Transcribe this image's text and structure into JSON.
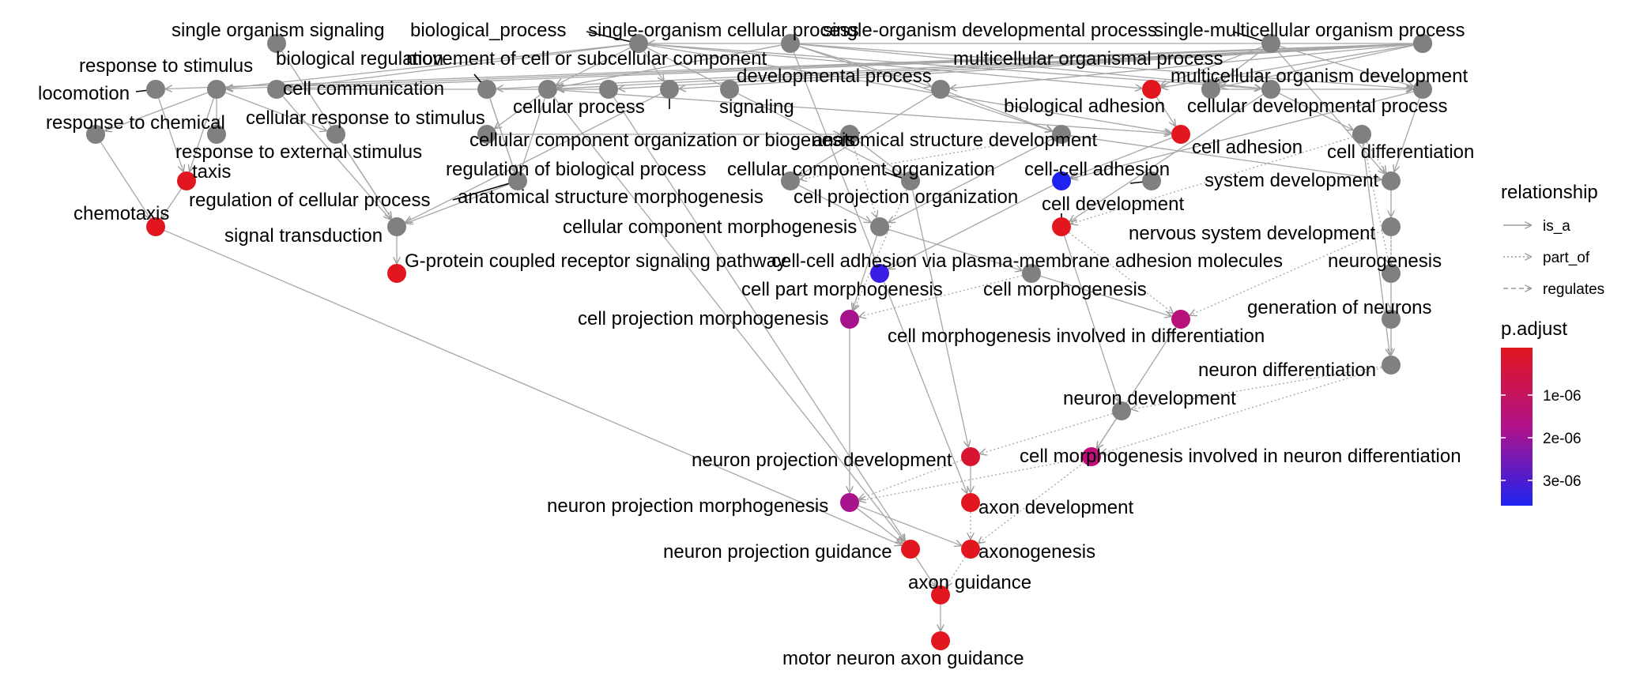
{
  "nodes": [
    {
      "id": "single_organism_signaling",
      "label": "single organism signaling",
      "color": "#808080"
    },
    {
      "id": "biological_process",
      "label": "biological_process",
      "color": "#808080"
    },
    {
      "id": "single_organism_cellular_process",
      "label": "single-organism cellular process",
      "color": "#808080"
    },
    {
      "id": "single_organism_developmental_process",
      "label": "single-organism developmental process",
      "color": "#808080"
    },
    {
      "id": "single_multicellular_organism_process",
      "label": "single-multicellular organism process",
      "color": "#808080"
    },
    {
      "id": "response_to_stimulus",
      "label": "response to stimulus",
      "color": "#808080"
    },
    {
      "id": "biological_regulation",
      "label": "biological regulation",
      "color": "#808080"
    },
    {
      "id": "movement_of_cell",
      "label": "movement of cell or subcellular component",
      "color": "#808080"
    },
    {
      "id": "multicellular_organismal_process",
      "label": "multicellular organismal process",
      "color": "#808080"
    },
    {
      "id": "locomotion",
      "label": "locomotion",
      "color": "#808080"
    },
    {
      "id": "cell_communication",
      "label": "cell communication",
      "color": "#808080"
    },
    {
      "id": "developmental_process",
      "label": "developmental process",
      "color": "#808080"
    },
    {
      "id": "multicellular_organism_development",
      "label": "multicellular organism development",
      "color": "#808080"
    },
    {
      "id": "cellular_process",
      "label": "cellular process",
      "color": "#808080"
    },
    {
      "id": "signaling",
      "label": "signaling",
      "color": "#808080"
    },
    {
      "id": "biological_adhesion",
      "label": "biological adhesion",
      "color": "#e1161f"
    },
    {
      "id": "cellular_developmental_process",
      "label": "cellular developmental process",
      "color": "#808080"
    },
    {
      "id": "response_to_chemical",
      "label": "response to chemical",
      "color": "#808080"
    },
    {
      "id": "cellular_response_to_stimulus",
      "label": "cellular response to stimulus",
      "color": "#808080"
    },
    {
      "id": "cellular_component_organization_or_biogenesis",
      "label": "cellular component organization or biogenesis",
      "color": "#808080"
    },
    {
      "id": "anatomical_structure_development",
      "label": "anatomical structure development",
      "color": "#808080"
    },
    {
      "id": "cell_adhesion",
      "label": "cell adhesion",
      "color": "#e1161f"
    },
    {
      "id": "response_to_external_stimulus",
      "label": "response to external stimulus",
      "color": "#808080"
    },
    {
      "id": "cell_differentiation",
      "label": "cell differentiation",
      "color": "#808080"
    },
    {
      "id": "taxis",
      "label": "taxis",
      "color": "#e1161f"
    },
    {
      "id": "regulation_of_biological_process",
      "label": "regulation of biological process",
      "color": "#808080"
    },
    {
      "id": "cellular_component_organization",
      "label": "cellular component organization",
      "color": "#808080"
    },
    {
      "id": "cell_cell_adhesion",
      "label": "cell-cell adhesion",
      "color": "#1e23f0"
    },
    {
      "id": "regulation_of_cellular_process",
      "label": "regulation of cellular process",
      "color": "#808080"
    },
    {
      "id": "anatomical_structure_morphogenesis",
      "label": "anatomical structure morphogenesis",
      "color": "#808080"
    },
    {
      "id": "cell_projection_organization",
      "label": "cell projection organization",
      "color": "#808080"
    },
    {
      "id": "system_development",
      "label": "system development",
      "color": "#808080"
    },
    {
      "id": "cell_development",
      "label": "cell development",
      "color": "#e1161f"
    },
    {
      "id": "chemotaxis",
      "label": "chemotaxis",
      "color": "#e1161f"
    },
    {
      "id": "signal_transduction",
      "label": "signal transduction",
      "color": "#808080"
    },
    {
      "id": "cellular_component_morphogenesis",
      "label": "cellular component morphogenesis",
      "color": "#808080"
    },
    {
      "id": "nervous_system_development",
      "label": "nervous system development",
      "color": "#808080"
    },
    {
      "id": "gpcr_signaling",
      "label": "G-protein coupled receptor signaling pathway",
      "color": "#e1161f"
    },
    {
      "id": "cell_cell_adhesion_via_pm",
      "label": "cell-cell adhesion via plasma-membrane adhesion molecules",
      "color": "#3a1ee6"
    },
    {
      "id": "neurogenesis",
      "label": "neurogenesis",
      "color": "#808080"
    },
    {
      "id": "cell_part_morphogenesis",
      "label": "cell part morphogenesis",
      "color": "#808080"
    },
    {
      "id": "cell_morphogenesis",
      "label": "cell morphogenesis",
      "color": "#808080"
    },
    {
      "id": "generation_of_neurons",
      "label": "generation of neurons",
      "color": "#808080"
    },
    {
      "id": "cell_projection_morphogenesis",
      "label": "cell projection morphogenesis",
      "color": "#a6128c"
    },
    {
      "id": "cell_morphogenesis_in_differentiation",
      "label": "cell morphogenesis involved in differentiation",
      "color": "#b8127a"
    },
    {
      "id": "neuron_differentiation",
      "label": "neuron differentiation",
      "color": "#808080"
    },
    {
      "id": "neuron_development",
      "label": "neuron development",
      "color": "#808080"
    },
    {
      "id": "neuron_projection_development",
      "label": "neuron projection development",
      "color": "#d81530"
    },
    {
      "id": "cell_morphogenesis_in_neuron_diff",
      "label": "cell morphogenesis involved in neuron differentiation",
      "color": "#c0107a"
    },
    {
      "id": "neuron_projection_morphogenesis",
      "label": "neuron projection morphogenesis",
      "color": "#a8148c"
    },
    {
      "id": "axon_development",
      "label": "axon development",
      "color": "#e1161f"
    },
    {
      "id": "neuron_projection_guidance",
      "label": "neuron projection guidance",
      "color": "#e1161f"
    },
    {
      "id": "axonogenesis",
      "label": "axonogenesis",
      "color": "#e1161f"
    },
    {
      "id": "axon_guidance",
      "label": "axon guidance",
      "color": "#e1161f"
    },
    {
      "id": "motor_neuron_axon_guidance",
      "label": "motor neuron axon guidance",
      "color": "#e1161f"
    }
  ],
  "edges": [
    {
      "from": "biological_process",
      "to": "single_organism_cellular_process",
      "type": "is_a"
    },
    {
      "from": "biological_process",
      "to": "response_to_stimulus",
      "type": "is_a"
    },
    {
      "from": "biological_process",
      "to": "locomotion",
      "type": "is_a"
    },
    {
      "from": "biological_process",
      "to": "biological_regulation",
      "type": "is_a"
    },
    {
      "from": "biological_process",
      "to": "cellular_process",
      "type": "is_a"
    },
    {
      "from": "biological_process",
      "to": "developmental_process",
      "type": "is_a"
    },
    {
      "from": "biological_process",
      "to": "multicellular_organismal_process",
      "type": "is_a"
    },
    {
      "from": "biological_process",
      "to": "biological_adhesion",
      "type": "is_a"
    },
    {
      "from": "biological_process",
      "to": "signaling",
      "type": "is_a"
    },
    {
      "from": "biological_process",
      "to": "cell_communication",
      "type": "is_a"
    },
    {
      "from": "biological_process",
      "to": "movement_of_cell",
      "type": "is_a"
    },
    {
      "from": "single_organism_developmental_process",
      "to": "developmental_process",
      "type": "is_a"
    },
    {
      "from": "single_organism_developmental_process",
      "to": "multicellular_organism_development",
      "type": "is_a"
    },
    {
      "from": "single_organism_developmental_process",
      "to": "cellular_developmental_process",
      "type": "is_a"
    },
    {
      "from": "single_organism_developmental_process",
      "to": "anatomical_structure_development",
      "type": "is_a"
    },
    {
      "from": "single_organism_developmental_process",
      "to": "axon_development",
      "type": "is_a"
    },
    {
      "from": "single_organism_developmental_process",
      "to": "cellular_process",
      "type": "is_a"
    },
    {
      "from": "single_multicellular_organism_process",
      "to": "multicellular_organism_development",
      "type": "is_a"
    },
    {
      "from": "single_multicellular_organism_process",
      "to": "multicellular_organismal_process",
      "type": "is_a"
    },
    {
      "from": "single_multicellular_organism_process",
      "to": "system_development",
      "type": "is_a"
    },
    {
      "from": "single_organism_cellular_process",
      "to": "cell_adhesion",
      "type": "is_a"
    },
    {
      "from": "single_organism_cellular_process",
      "to": "cellular_developmental_process",
      "type": "is_a"
    },
    {
      "from": "single_organism_cellular_process",
      "to": "cellular_process",
      "type": "is_a"
    },
    {
      "from": "single_organism_cellular_process",
      "to": "response_to_stimulus",
      "type": "is_a"
    },
    {
      "from": "single_organism_cellular_process",
      "to": "cell_communication",
      "type": "is_a"
    },
    {
      "from": "single_organism_cellular_process",
      "to": "cell_projection_organization",
      "type": "is_a"
    },
    {
      "from": "single_organism_cellular_process",
      "to": "biological_adhesion",
      "type": "is_a"
    },
    {
      "from": "single_organism_cellular_process",
      "to": "signaling",
      "type": "is_a"
    },
    {
      "from": "single_multicellular_organism_process",
      "to": "biological_adhesion",
      "type": "is_a"
    },
    {
      "from": "single_organism_signaling",
      "to": "signal_transduction",
      "type": "is_a"
    },
    {
      "from": "response_to_stimulus",
      "to": "response_to_chemical",
      "type": "is_a"
    },
    {
      "from": "response_to_stimulus",
      "to": "response_to_external_stimulus",
      "type": "is_a"
    },
    {
      "from": "response_to_stimulus",
      "to": "cellular_response_to_stimulus",
      "type": "is_a"
    },
    {
      "from": "response_to_stimulus",
      "to": "taxis",
      "type": "is_a"
    },
    {
      "from": "locomotion",
      "to": "taxis",
      "type": "is_a"
    },
    {
      "from": "response_to_chemical",
      "to": "chemotaxis",
      "type": "is_a"
    },
    {
      "from": "taxis",
      "to": "chemotaxis",
      "type": "is_a"
    },
    {
      "from": "chemotaxis",
      "to": "neuron_projection_guidance",
      "type": "is_a"
    },
    {
      "from": "biological_regulation",
      "to": "regulation_of_biological_process",
      "type": "is_a"
    },
    {
      "from": "biological_regulation",
      "to": "regulation_of_cellular_process",
      "type": "is_a"
    },
    {
      "from": "regulation_of_cellular_process",
      "to": "signal_transduction",
      "type": "is_a"
    },
    {
      "from": "cell_communication",
      "to": "signal_transduction",
      "type": "is_a"
    },
    {
      "from": "cellular_response_to_stimulus",
      "to": "signal_transduction",
      "type": "is_a"
    },
    {
      "from": "signaling",
      "to": "signal_transduction",
      "type": "is_a"
    },
    {
      "from": "signal_transduction",
      "to": "gpcr_signaling",
      "type": "is_a"
    },
    {
      "from": "cellular_process",
      "to": "cellular_component_organization_or_biogenesis",
      "type": "is_a"
    },
    {
      "from": "cellular_process",
      "to": "cell_adhesion",
      "type": "is_a"
    },
    {
      "from": "cellular_process",
      "to": "regulation_of_cellular_process",
      "type": "is_a"
    },
    {
      "from": "cellular_process",
      "to": "cell_communication",
      "type": "is_a"
    },
    {
      "from": "cellular_process",
      "to": "neuron_projection_guidance",
      "type": "is_a"
    },
    {
      "from": "cellular_component_organization_or_biogenesis",
      "to": "cellular_component_organization",
      "type": "is_a"
    },
    {
      "from": "cellular_component_organization",
      "to": "cell_projection_organization",
      "type": "is_a"
    },
    {
      "from": "cellular_component_organization",
      "to": "cellular_component_morphogenesis",
      "type": "part_of"
    },
    {
      "from": "movement_of_cell",
      "to": "neuron_projection_guidance",
      "type": "is_a"
    },
    {
      "from": "movement_of_cell",
      "to": "cellular_process",
      "type": "is_a"
    },
    {
      "from": "developmental_process",
      "to": "anatomical_structure_morphogenesis",
      "type": "is_a"
    },
    {
      "from": "developmental_process",
      "to": "anatomical_structure_development",
      "type": "is_a"
    },
    {
      "from": "anatomical_structure_development",
      "to": "anatomical_structure_morphogenesis",
      "type": "part_of"
    },
    {
      "from": "anatomical_structure_development",
      "to": "system_development",
      "type": "is_a"
    },
    {
      "from": "anatomical_structure_development",
      "to": "cellular_component_morphogenesis",
      "type": "is_a"
    },
    {
      "from": "anatomical_structure_morphogenesis",
      "to": "cellular_component_morphogenesis",
      "type": "is_a"
    },
    {
      "from": "cellular_component_morphogenesis",
      "to": "cell_part_morphogenesis",
      "type": "is_a"
    },
    {
      "from": "cellular_component_morphogenesis",
      "to": "cell_morphogenesis",
      "type": "is_a"
    },
    {
      "from": "cell_projection_organization",
      "to": "cell_projection_morphogenesis",
      "type": "part_of"
    },
    {
      "from": "cell_projection_organization",
      "to": "neuron_projection_development",
      "type": "is_a"
    },
    {
      "from": "cell_part_morphogenesis",
      "to": "cell_projection_morphogenesis",
      "type": "is_a"
    },
    {
      "from": "cell_morphogenesis",
      "to": "cell_projection_morphogenesis",
      "type": "part_of"
    },
    {
      "from": "cell_morphogenesis",
      "to": "cell_morphogenesis_in_differentiation",
      "type": "is_a"
    },
    {
      "from": "cell_projection_morphogenesis",
      "to": "neuron_projection_morphogenesis",
      "type": "is_a"
    },
    {
      "from": "biological_adhesion",
      "to": "cell_adhesion",
      "type": "is_a"
    },
    {
      "from": "cell_adhesion",
      "to": "cell_cell_adhesion",
      "type": "is_a"
    },
    {
      "from": "cell_cell_adhesion",
      "to": "cell_cell_adhesion_via_pm",
      "type": "is_a"
    },
    {
      "from": "multicellular_organismal_process",
      "to": "multicellular_organism_development",
      "type": "is_a"
    },
    {
      "from": "multicellular_organism_development",
      "to": "system_development",
      "type": "is_a"
    },
    {
      "from": "multicellular_organism_development",
      "to": "cell_cell_adhesion",
      "type": "is_a"
    },
    {
      "from": "cellular_developmental_process",
      "to": "cell_differentiation",
      "type": "is_a"
    },
    {
      "from": "cellular_developmental_process",
      "to": "cell_development",
      "type": "is_a"
    },
    {
      "from": "cell_differentiation",
      "to": "cell_development",
      "type": "part_of"
    },
    {
      "from": "cell_differentiation",
      "to": "neurogenesis",
      "type": "part_of"
    },
    {
      "from": "cell_differentiation",
      "to": "system_development",
      "type": "part_of"
    },
    {
      "from": "cell_differentiation",
      "to": "neuron_differentiation",
      "type": "is_a"
    },
    {
      "from": "system_development",
      "to": "nervous_system_development",
      "type": "is_a"
    },
    {
      "from": "system_development",
      "to": "neurogenesis",
      "type": "part_of"
    },
    {
      "from": "nervous_system_development",
      "to": "neurogenesis",
      "type": "part_of"
    },
    {
      "from": "nervous_system_development",
      "to": "cell_morphogenesis_in_differentiation",
      "type": "part_of"
    },
    {
      "from": "neurogenesis",
      "to": "generation_of_neurons",
      "type": "is_a"
    },
    {
      "from": "generation_of_neurons",
      "to": "neuron_differentiation",
      "type": "is_a"
    },
    {
      "from": "cell_development",
      "to": "neuron_development",
      "type": "is_a"
    },
    {
      "from": "cell_development",
      "to": "cell_morphogenesis_in_differentiation",
      "type": "part_of"
    },
    {
      "from": "cell_morphogenesis_in_differentiation",
      "to": "cell_morphogenesis_in_neuron_diff",
      "type": "is_a"
    },
    {
      "from": "neuron_differentiation",
      "to": "neuron_development",
      "type": "part_of"
    },
    {
      "from": "neuron_differentiation",
      "to": "cell_morphogenesis_in_neuron_diff",
      "type": "part_of"
    },
    {
      "from": "neuron_development",
      "to": "neuron_projection_development",
      "type": "part_of"
    },
    {
      "from": "neuron_development",
      "to": "cell_morphogenesis_in_neuron_diff",
      "type": "is_a"
    },
    {
      "from": "neuron_projection_development",
      "to": "axon_development",
      "type": "is_a"
    },
    {
      "from": "neuron_projection_development",
      "to": "neuron_projection_morphogenesis",
      "type": "part_of"
    },
    {
      "from": "cell_morphogenesis_in_neuron_diff",
      "to": "neuron_projection_morphogenesis",
      "type": "part_of"
    },
    {
      "from": "cell_morphogenesis_in_neuron_diff",
      "to": "axonogenesis",
      "type": "part_of"
    },
    {
      "from": "neuron_projection_morphogenesis",
      "to": "axonogenesis",
      "type": "is_a"
    },
    {
      "from": "neuron_projection_morphogenesis",
      "to": "neuron_projection_guidance",
      "type": "is_a"
    },
    {
      "from": "axon_development",
      "to": "axonogenesis",
      "type": "part_of"
    },
    {
      "from": "neuron_projection_guidance",
      "to": "axon_guidance",
      "type": "is_a"
    },
    {
      "from": "axonogenesis",
      "to": "axon_guidance",
      "type": "part_of"
    },
    {
      "from": "axon_guidance",
      "to": "motor_neuron_axon_guidance",
      "type": "is_a"
    }
  ],
  "legend": {
    "relationship": {
      "title": "relationship",
      "items": [
        {
          "label": "is_a",
          "style": "solid"
        },
        {
          "label": "part_of",
          "style": "dotted"
        },
        {
          "label": "regulates",
          "style": "dashed"
        }
      ]
    },
    "padjust": {
      "title": "p.adjust",
      "ticks": [
        "1e-06",
        "2e-06",
        "3e-06"
      ],
      "colors": [
        "#e1161f",
        "#1e23f0"
      ]
    }
  }
}
